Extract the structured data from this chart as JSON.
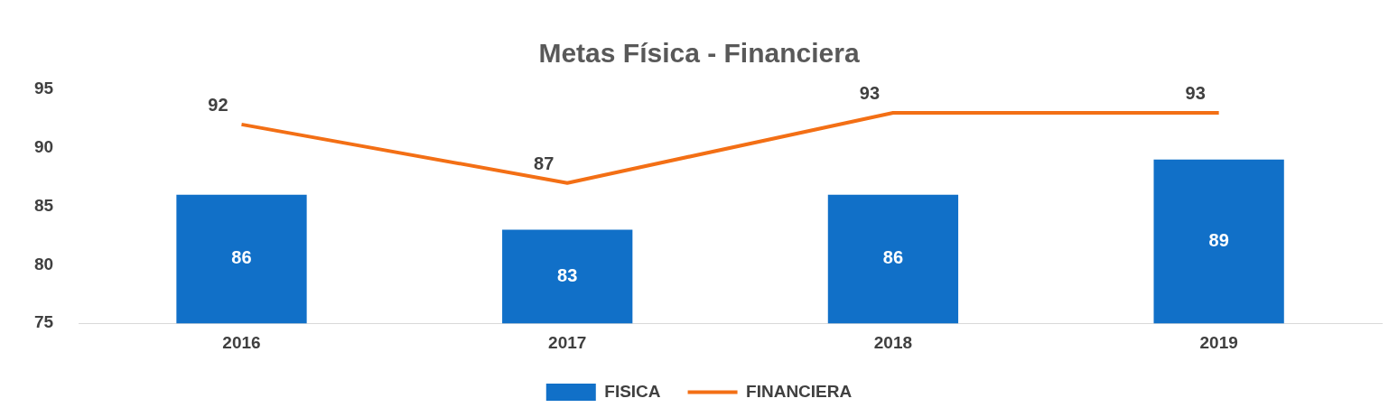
{
  "chart_data": {
    "type": "bar",
    "title": "Metas Física - Financiera",
    "categories": [
      "2016",
      "2017",
      "2018",
      "2019"
    ],
    "series": [
      {
        "name": "FISICA",
        "color": "#1170c8",
        "values": [
          86,
          83,
          86,
          89
        ]
      },
      {
        "name": "FINANCIERA",
        "type": "line",
        "color": "#f36f15",
        "values": [
          92,
          87,
          93,
          93
        ]
      }
    ],
    "ylim": [
      75,
      95
    ],
    "yticks": [
      75,
      80,
      85,
      90,
      95
    ],
    "grid": false,
    "legend": "bottom",
    "data_labels": true,
    "marker": "none"
  }
}
